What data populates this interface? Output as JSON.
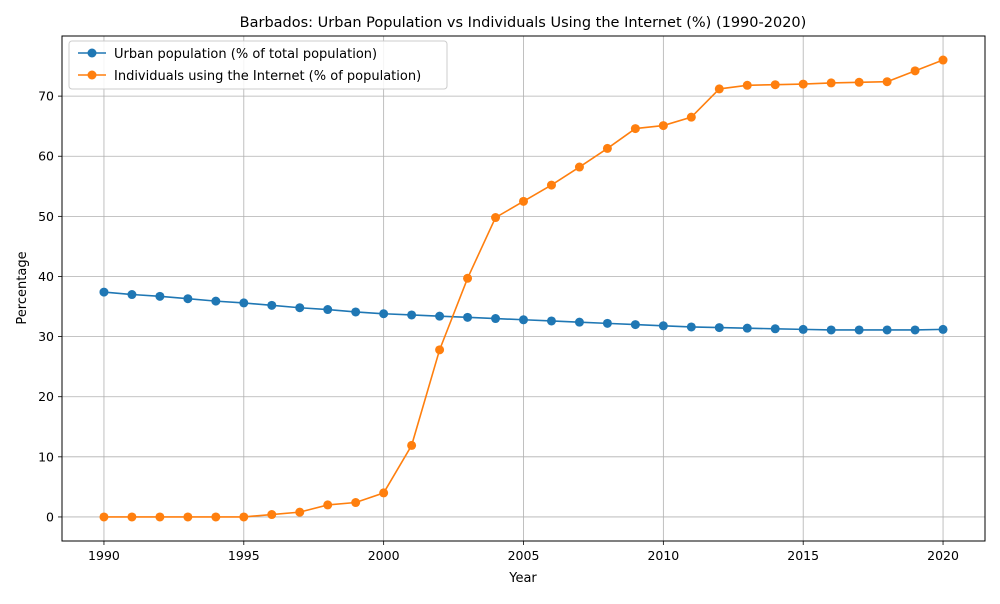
{
  "chart_data": {
    "type": "line",
    "title": "Barbados: Urban Population vs Individuals Using the Internet (%) (1990-2020)",
    "xlabel": "Year",
    "ylabel": "Percentage",
    "xlim": [
      1988.5,
      2021.5
    ],
    "ylim": [
      -4,
      80
    ],
    "xticks": [
      1990,
      1995,
      2000,
      2005,
      2010,
      2015,
      2020
    ],
    "yticks": [
      0,
      10,
      20,
      30,
      40,
      50,
      60,
      70
    ],
    "grid": true,
    "legend_position": "upper-left",
    "x": [
      1990,
      1991,
      1992,
      1993,
      1994,
      1995,
      1996,
      1997,
      1998,
      1999,
      2000,
      2001,
      2002,
      2003,
      2004,
      2005,
      2006,
      2007,
      2008,
      2009,
      2010,
      2011,
      2012,
      2013,
      2014,
      2015,
      2016,
      2017,
      2018,
      2019,
      2020
    ],
    "series": [
      {
        "name": "Urban population (% of total population)",
        "color": "#1f77b4",
        "values": [
          37.4,
          37.0,
          36.7,
          36.3,
          35.9,
          35.6,
          35.2,
          34.8,
          34.5,
          34.1,
          33.8,
          33.6,
          33.4,
          33.2,
          33.0,
          32.8,
          32.6,
          32.4,
          32.2,
          32.0,
          31.8,
          31.6,
          31.5,
          31.4,
          31.3,
          31.2,
          31.1,
          31.1,
          31.1,
          31.1,
          31.2
        ]
      },
      {
        "name": "Individuals using the Internet (% of population)",
        "color": "#ff7f0e",
        "values": [
          0,
          0,
          0,
          0,
          0,
          0,
          0.4,
          0.8,
          2.0,
          2.4,
          4.0,
          11.9,
          27.8,
          39.7,
          49.8,
          52.5,
          55.2,
          58.2,
          61.3,
          64.6,
          65.1,
          66.5,
          71.2,
          71.8,
          71.9,
          72.0,
          72.2,
          72.3,
          72.4,
          74.2,
          76.0
        ]
      }
    ]
  }
}
